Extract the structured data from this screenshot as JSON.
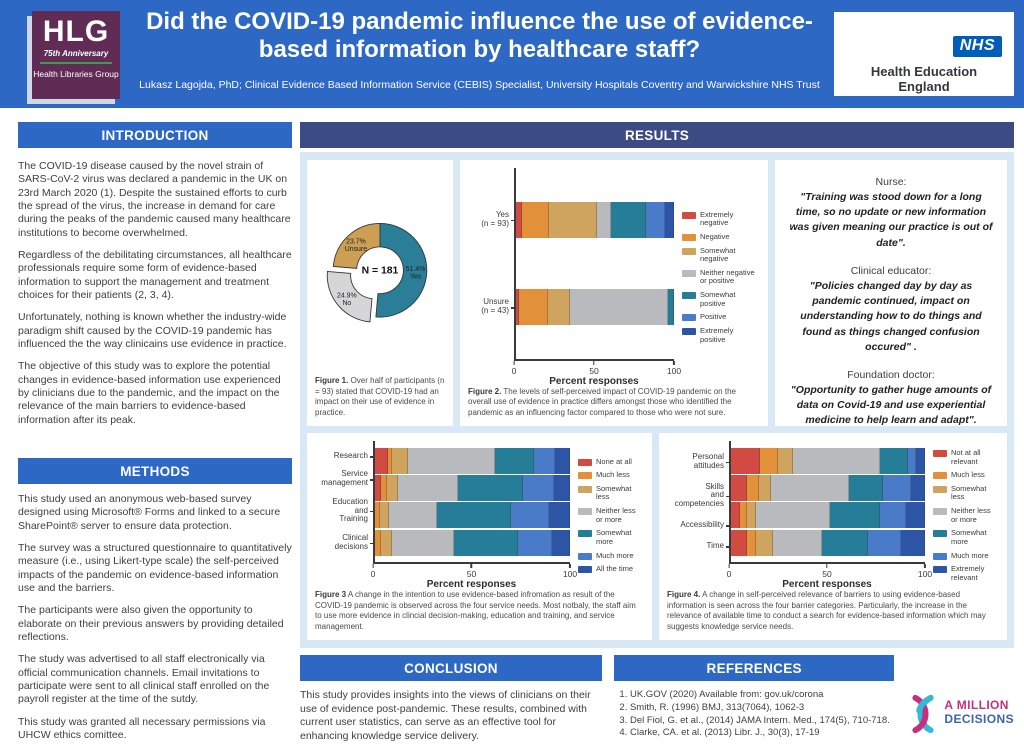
{
  "header": {
    "title": "Did the COVID-19 pandemic influence the use of evidence-based information by healthcare staff?",
    "subtitle": "Lukasz Lagojda, PhD; Clinical Evidence Based Information Service (CEBIS) Specialist, University Hospitals Coventry and Warwickshire NHS Trust",
    "hlg_logo": {
      "acronym": "HLG",
      "anniversary": "75th Anniversary",
      "name": "Health Libraries Group"
    },
    "nhs_logo": {
      "nhs": "NHS",
      "org": "Health Education England"
    }
  },
  "sections": {
    "introduction": {
      "title": "INTRODUCTION",
      "paragraphs": [
        "The COVID-19 disease caused by the novel strain of SARS-CoV-2 virus was declared a pandemic in the UK on 23rd March 2020 (1). Despite the sustained efforts to curb the spread of the virus, the increase in demand for care during the peaks of the pandemic caused many healthcare institutions to become overwhelmed.",
        "Regardless of the debilitating circumstances, all healthcare professionals require some form of evidence-based information to support the management and treatment choices for their patients (2, 3, 4).",
        "Unfortunately, nothing is known whether the industry-wide paradigm shift caused by the COVID-19 pandemic has influenced the the way clinicains use evidence in practice.",
        "The objective of this study was to explore the potential changes in evidence-based information use experienced by clinicians due to the pandemic, and the impact on the relevance of the main barriers to evidence-based information after its peak."
      ]
    },
    "methods": {
      "title": "METHODS",
      "paragraphs": [
        "This study used an anonymous web-based survey designed using Microsoft® Forms and linked to a secure SharePoint® server to ensure data protection.",
        "The survey was a structured questionnaire to quantitatively measure (i.e., using Likert-type scale) the self-perceived impacts of the pandemic on evidence-based information use and the barriers.",
        "The participants were also given the opportunity to elaborate on their previous answers by providing detailed reflections.",
        "The study was advertised to all staff electronically via official communication channels. Email invitations to participate were sent to all clinical staff enrolled on the payroll register at the time of the sutdy.",
        "This study was granted all necessary permissions via UHCW ethics comittee."
      ]
    },
    "results": {
      "title": "RESULTS"
    },
    "conclusion": {
      "title": "CONCLUSION",
      "text": "This study provides insights into the views of clinicians on their use of evidence post-pandemic. These results, combined with current user statistics, can serve as an effective tool for enhancing knowledge service delivery."
    },
    "references": {
      "title": "REFERENCES",
      "items": [
        "UK.GOV (2020) Available from: gov.uk/corona",
        "Smith, R. (1996) BMJ, 313(7064), 1062-3",
        "Del Fiol, G. et al., (2014) JAMA Intern. Med., 174(5), 710-718.",
        "Clarke, CA. et al. (2013) Libr. J., 30(3), 17-19"
      ]
    }
  },
  "quotes": [
    {
      "role": "Nurse:",
      "text": "\"Training was stood down for a long time, so no update or new information was given meaning our practice is out of date\"."
    },
    {
      "role": "Clinical educator:",
      "text": "\"Policies changed day by day as pandemic continued, impact on understanding how to do things and found as things changed confusion occured\" ."
    },
    {
      "role": "Foundation doctor:",
      "text": "\"Opportunity to gather huge amounts of data on Covid-19 and use experiential medicine to help learn and adapt\"."
    }
  ],
  "captions": {
    "fig1": {
      "label": "Figure 1.",
      "text": "Over half of participants (n = 93) stated that COVID-19 had an impact on their use of evidence in practice."
    },
    "fig2": {
      "label": "Figure 2.",
      "text": "The levels of self-perceived impact of COVID-19 pandemic on the overall use of evidence in practice differs amongst those who identified the pandemic as an influencing factor compared to those who were not sure."
    },
    "fig3": {
      "label": "Figure 3",
      "text": "A change in the intention to use evidence-based infromation as result of the COVID-19 pandemic is observed across the four service needs. Most notbaly, the staff aim to use more evidence in clincial decision-making, education and training, and service management."
    },
    "fig4": {
      "label": "Figure 4.",
      "text": "A change in self-perceived relevance of barriers to using evidence-based information is seen across the four barrier categories. Particularly, the increase in the relevance of available time to conduct a search for evidence-based information which may suggests knowledge service needs."
    }
  },
  "footer_logo": {
    "line1": "A MILLION",
    "line2": "DECISIONS"
  },
  "colors": {
    "banner_blue": "#2d68c4",
    "results_navy": "#3d4b84",
    "panel_light_blue": "#d9e8f5",
    "hlg_purple": "#602c56",
    "nhs_blue": "#005eb8",
    "million_pink": "#c4307c",
    "million_blue": "#3c63ad"
  },
  "chart_data": [
    {
      "id": "fig1",
      "type": "pie",
      "center_label": "N = 181",
      "slices": [
        {
          "label": "Yes",
          "pct": 51.4,
          "color": "#2a7e98",
          "explode": false
        },
        {
          "label": "No",
          "pct": 24.9,
          "color": "#d6d6d8",
          "explode": true
        },
        {
          "label": "Unsure",
          "pct": 23.7,
          "color": "#cd9f55",
          "explode": false
        }
      ]
    },
    {
      "id": "fig2",
      "type": "bar",
      "orientation": "horizontal-stacked",
      "xlabel": "Percent responses",
      "xlim": [
        0,
        100
      ],
      "xticks": [
        0,
        50,
        100
      ],
      "categories": [
        "Yes\n(n = 93)",
        "Unsure\n(n = 43)"
      ],
      "legend": [
        "Extremely negative",
        "Negative",
        "Somewhat negative",
        "Neither negative or positive",
        "Somewhat positive",
        "Positive",
        "Extremely positive"
      ],
      "colors": [
        "#d14b42",
        "#e2903a",
        "#cfa45e",
        "#b9babe",
        "#257d97",
        "#4a7bc9",
        "#2d55a5"
      ],
      "rows": [
        [
          3.5,
          17.5,
          30,
          9,
          22,
          12.5,
          5.5
        ],
        [
          2,
          18.5,
          14,
          62,
          3.5,
          0,
          0
        ]
      ]
    },
    {
      "id": "fig3",
      "type": "bar",
      "orientation": "horizontal-stacked",
      "xlabel": "Percent responses",
      "xlim": [
        0,
        100
      ],
      "xticks": [
        0,
        50,
        100
      ],
      "categories": [
        "Research",
        "Service\nmanagement",
        "Education\nand\nTraining",
        "Clinical\ndecisions"
      ],
      "legend": [
        "None at all",
        "Much less",
        "Somewhat less",
        "Neither less or more",
        "Somewhat more",
        "Much more",
        "All the time"
      ],
      "colors": [
        "#d14b42",
        "#e2903a",
        "#cfa45e",
        "#b9babe",
        "#257d97",
        "#4a7bc9",
        "#2d55a5"
      ],
      "rows": [
        [
          6.5,
          2,
          8.5,
          44.5,
          20,
          11,
          7.5
        ],
        [
          3,
          3,
          6,
          30.5,
          33.5,
          16,
          8
        ],
        [
          0,
          2.5,
          4.5,
          25,
          37.5,
          19.5,
          11
        ],
        [
          0,
          3,
          5.5,
          32,
          33,
          17.5,
          9
        ]
      ]
    },
    {
      "id": "fig4",
      "type": "bar",
      "orientation": "horizontal-stacked",
      "xlabel": "Percent responses",
      "xlim": [
        0,
        100
      ],
      "xticks": [
        0,
        50,
        100
      ],
      "categories": [
        "Personal\nattitudes",
        "Skills\nand\ncompetencies",
        "Accessibility",
        "Time"
      ],
      "legend": [
        "Not at all relevant",
        "Much less",
        "Somewhat less",
        "Neither less or more",
        "Somewhat more",
        "Much more",
        "Extremely relevant"
      ],
      "colors": [
        "#d14b42",
        "#e2903a",
        "#cfa45e",
        "#b9babe",
        "#257d97",
        "#4a7bc9",
        "#2d55a5"
      ],
      "rows": [
        [
          15,
          9,
          8,
          45,
          14,
          4.5,
          4.5
        ],
        [
          8,
          6.5,
          6,
          40.5,
          17.5,
          14.5,
          7
        ],
        [
          4.5,
          3.5,
          5,
          38,
          26,
          13,
          10
        ],
        [
          8,
          5,
          8.5,
          25.5,
          23.5,
          17,
          12.5
        ]
      ]
    }
  ]
}
